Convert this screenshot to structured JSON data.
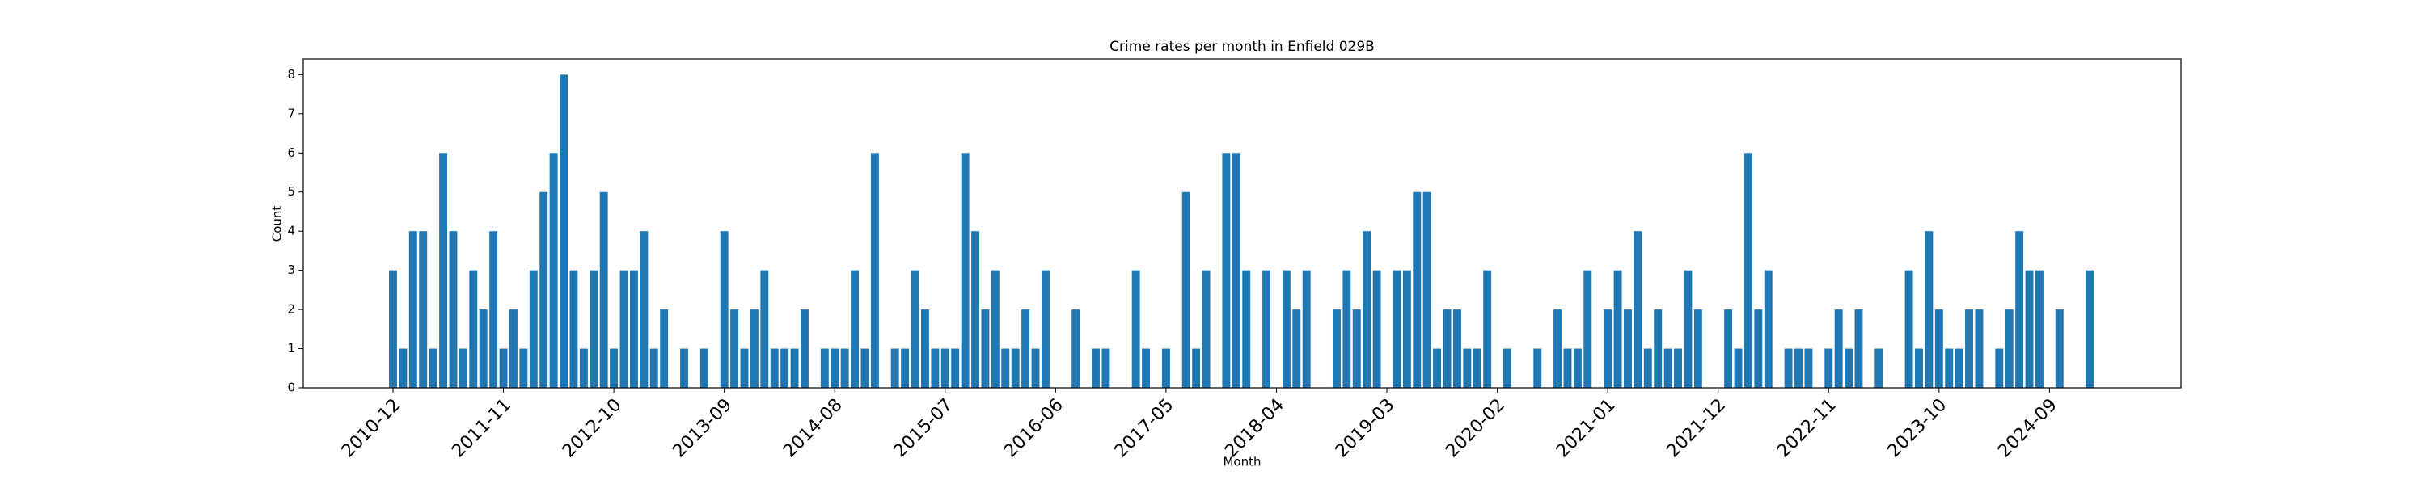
{
  "chart_data": {
    "type": "bar",
    "title": "Crime rates per month in Enfield 029B",
    "x_label": "Month",
    "y_label": "Count",
    "color": "#1f77b4",
    "categories": [
      "2010-12",
      null,
      null,
      null,
      null,
      null,
      null,
      null,
      null,
      null,
      null,
      "2011-11",
      null,
      null,
      null,
      null,
      null,
      null,
      null,
      null,
      null,
      null,
      "2012-10",
      null,
      null,
      null,
      null,
      null,
      null,
      null,
      null,
      null,
      null,
      "2013-09",
      null,
      null,
      null,
      null,
      null,
      null,
      null,
      null,
      null,
      null,
      "2014-08",
      null,
      null,
      null,
      null,
      null,
      null,
      null,
      null,
      null,
      null,
      "2015-07",
      null,
      null,
      null,
      null,
      null,
      null,
      null,
      null,
      null,
      null,
      "2016-06",
      null,
      null,
      null,
      null,
      null,
      null,
      null,
      null,
      null,
      null,
      "2017-05",
      null,
      null,
      null,
      null,
      null,
      null,
      null,
      null,
      null,
      null,
      "2018-04",
      null,
      null,
      null,
      null,
      null,
      null,
      null,
      null,
      null,
      null,
      "2019-03",
      null,
      null,
      null,
      null,
      null,
      null,
      null,
      null,
      null,
      null,
      "2020-02",
      null,
      null,
      null,
      null,
      null,
      null,
      null,
      null,
      null,
      null,
      "2021-01",
      null,
      null,
      null,
      null,
      null,
      null,
      null,
      null,
      null,
      null,
      "2021-12",
      null,
      null,
      null,
      null,
      null,
      null,
      null,
      null,
      null,
      null,
      "2022-11",
      null,
      null,
      null,
      null,
      null,
      null,
      null,
      null,
      null,
      null,
      "2023-10",
      null,
      null,
      null,
      null,
      null,
      null,
      null,
      null,
      null,
      null,
      "2024-09",
      null,
      null,
      null,
      null
    ],
    "values": [
      3,
      1,
      4,
      4,
      1,
      6,
      4,
      1,
      3,
      2,
      4,
      1,
      2,
      1,
      3,
      5,
      6,
      8,
      3,
      1,
      3,
      5,
      1,
      3,
      3,
      4,
      1,
      2,
      0,
      1,
      0,
      1,
      0,
      4,
      2,
      1,
      2,
      3,
      1,
      1,
      1,
      2,
      0,
      1,
      1,
      1,
      3,
      1,
      6,
      0,
      1,
      1,
      3,
      2,
      1,
      1,
      1,
      6,
      4,
      2,
      3,
      1,
      1,
      2,
      1,
      3,
      0,
      0,
      2,
      0,
      1,
      1,
      0,
      0,
      3,
      1,
      0,
      1,
      0,
      5,
      1,
      3,
      0,
      6,
      6,
      3,
      0,
      3,
      0,
      3,
      2,
      3,
      0,
      0,
      2,
      3,
      2,
      4,
      3,
      0,
      3,
      3,
      5,
      5,
      1,
      2,
      2,
      1,
      1,
      3,
      0,
      1,
      0,
      0,
      1,
      0,
      2,
      1,
      1,
      3,
      0,
      2,
      3,
      2,
      4,
      1,
      2,
      1,
      1,
      3,
      2,
      0,
      0,
      2,
      1,
      6,
      2,
      3,
      0,
      1,
      1,
      1,
      0,
      1,
      2,
      1,
      2,
      0,
      1,
      0,
      0,
      3,
      1,
      4,
      2,
      1,
      1,
      2,
      2,
      0,
      1,
      2,
      4,
      3,
      3,
      0,
      2,
      0,
      0,
      3
    ],
    "ylim": [
      0,
      8.4
    ],
    "yticks": [
      0,
      1,
      2,
      3,
      4,
      5,
      6,
      7,
      8
    ],
    "grid": false
  }
}
